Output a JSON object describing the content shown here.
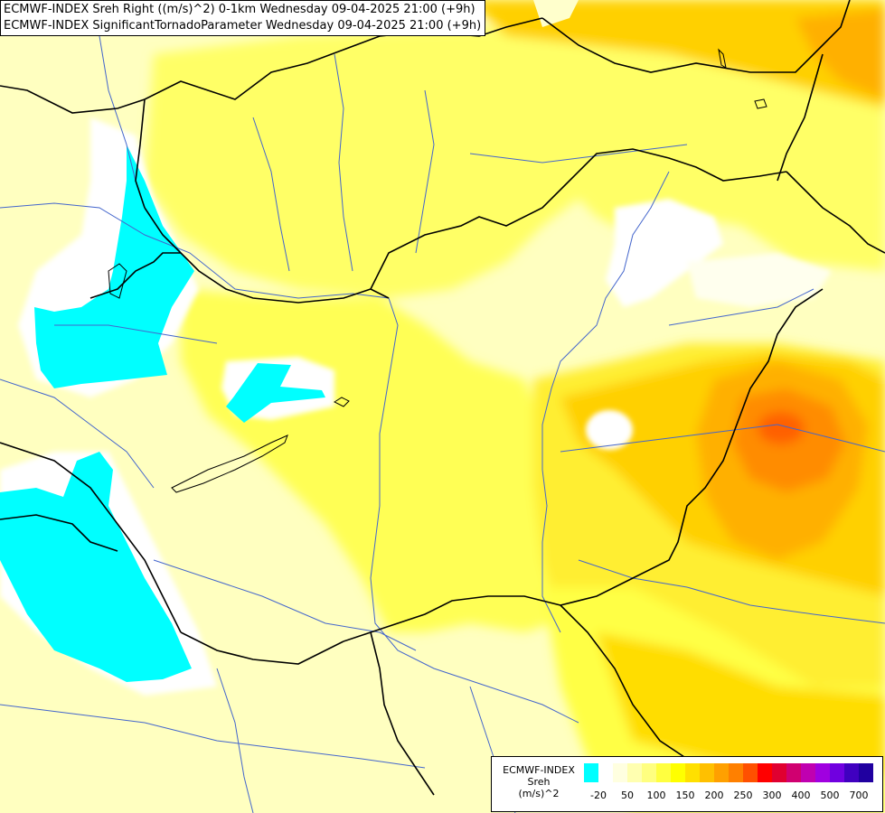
{
  "titles": {
    "line1": "ECMWF-INDEX Sreh Right ((m/s)^2) 0-1km Wednesday 09-04-2025 21:00 (+9h)",
    "line2": "ECMWF-INDEX SignificantTornadoParameter Wednesday 09-04-2025 21:00 (+9h)"
  },
  "legend": {
    "title_line1": "ECMWF-INDEX",
    "title_line2": "Sreh",
    "title_line3": "(m/s)^2",
    "colors": [
      "#00ffff",
      "#ffffff",
      "#ffffe0",
      "#ffffb0",
      "#ffff80",
      "#ffff40",
      "#ffff00",
      "#ffe000",
      "#ffc000",
      "#ffa000",
      "#ff8000",
      "#ff5000",
      "#ff0000",
      "#e00030",
      "#d00070",
      "#c000b0",
      "#a000e0",
      "#7000e0",
      "#4000c0",
      "#2000a0"
    ],
    "tick_labels": [
      "-20",
      "50",
      "100",
      "150",
      "200",
      "250",
      "300",
      "400",
      "500",
      "700"
    ]
  },
  "map_colors": {
    "background": "#ffffc0",
    "light_yellow": "#ffff99",
    "yellow": "#ffff40",
    "gold": "#ffd700",
    "orange": "#ffae00",
    "dark_orange": "#ff7f00",
    "cyan": "#00ffff",
    "white": "#ffffff",
    "border": "#000000",
    "river": "#4466cc"
  }
}
